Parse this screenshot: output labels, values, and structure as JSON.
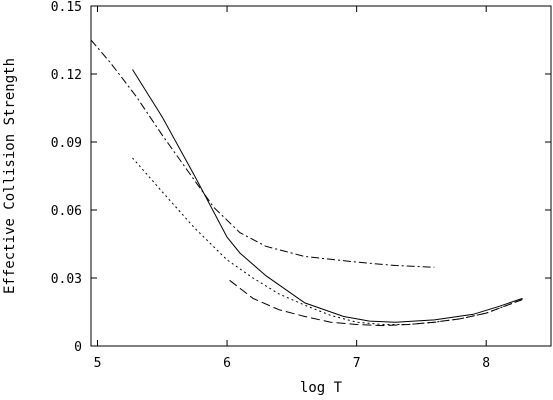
{
  "chart_data": {
    "type": "line",
    "title": "",
    "xlabel": "log T",
    "ylabel": "Effective Collision Strength",
    "xlim": [
      4.95,
      8.5
    ],
    "ylim": [
      0,
      0.15
    ],
    "x_ticks": [
      5,
      6,
      7,
      8
    ],
    "x_tick_labels": [
      "5",
      "6",
      "7",
      "8"
    ],
    "y_ticks": [
      0,
      0.03,
      0.06,
      0.09,
      0.12,
      0.15
    ],
    "y_tick_labels": [
      "0",
      "0.03",
      "0.06",
      "0.09",
      "0.12",
      "0.15"
    ],
    "grid": false,
    "series": [
      {
        "style": "solid",
        "x": [
          5.27,
          5.5,
          5.75,
          6.0,
          6.1,
          6.3,
          6.6,
          6.9,
          7.1,
          7.3,
          7.6,
          7.9,
          8.1,
          8.28
        ],
        "y": [
          0.122,
          0.101,
          0.075,
          0.048,
          0.041,
          0.031,
          0.019,
          0.013,
          0.011,
          0.0105,
          0.0115,
          0.014,
          0.0175,
          0.021
        ]
      },
      {
        "style": "dashed",
        "x": [
          6.02,
          6.2,
          6.4,
          6.6,
          6.8,
          7.0,
          7.2,
          7.4,
          7.6,
          7.8,
          8.0,
          8.28
        ],
        "y": [
          0.029,
          0.021,
          0.016,
          0.013,
          0.0105,
          0.0095,
          0.009,
          0.0095,
          0.0105,
          0.012,
          0.0145,
          0.0205
        ]
      },
      {
        "style": "dotted",
        "x": [
          5.27,
          5.5,
          5.75,
          6.0,
          6.2,
          6.4,
          6.6,
          6.8,
          7.0,
          7.2,
          7.4,
          7.6,
          7.8,
          8.0,
          8.28
        ],
        "y": [
          0.083,
          0.068,
          0.052,
          0.038,
          0.03,
          0.023,
          0.018,
          0.0135,
          0.0105,
          0.0095,
          0.0095,
          0.0105,
          0.012,
          0.0145,
          0.0205
        ]
      },
      {
        "style": "dash-dot",
        "x": [
          4.95,
          5.1,
          5.3,
          5.5,
          5.7,
          5.9,
          6.1,
          6.3,
          6.6,
          7.0,
          7.3,
          7.6
        ],
        "y": [
          0.135,
          0.125,
          0.11,
          0.093,
          0.077,
          0.061,
          0.05,
          0.044,
          0.0395,
          0.037,
          0.0355,
          0.0347
        ]
      }
    ]
  }
}
